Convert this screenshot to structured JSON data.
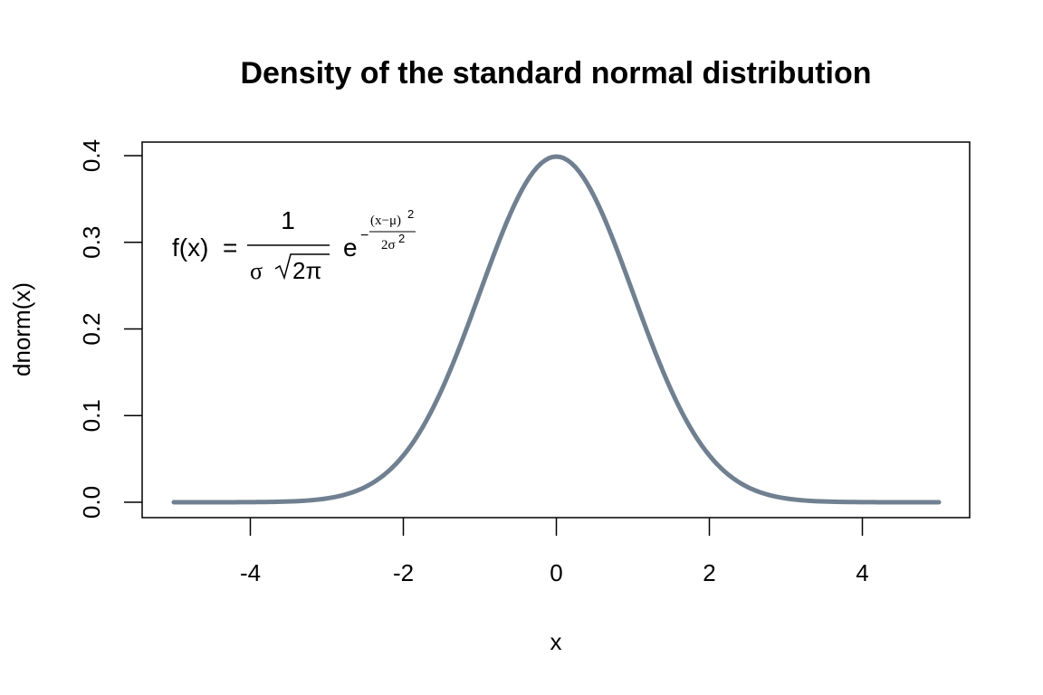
{
  "chart_data": {
    "type": "line",
    "title": "Density of the standard normal distribution",
    "xlabel": "x",
    "ylabel": "dnorm(x)",
    "xlim": [
      -5,
      5
    ],
    "ylim": [
      0,
      0.4
    ],
    "x_ticks": [
      -4,
      -2,
      0,
      2,
      4
    ],
    "x_tick_labels": [
      "-4",
      "-2",
      "0",
      "2",
      "4"
    ],
    "y_ticks": [
      0,
      0.1,
      0.2,
      0.3,
      0.4
    ],
    "y_tick_labels": [
      "0.0",
      "0.1",
      "0.2",
      "0.3",
      "0.4"
    ],
    "grid": false,
    "series": [
      {
        "color": "#708090",
        "function": "dnorm",
        "x": [
          -5,
          -4.5,
          -4,
          -3.5,
          -3,
          -2.5,
          -2,
          -1.5,
          -1,
          -0.5,
          0,
          0.5,
          1,
          1.5,
          2,
          2.5,
          3,
          3.5,
          4,
          4.5,
          5
        ],
        "y": [
          1.5e-06,
          1.6e-05,
          0.000134,
          0.000873,
          0.004432,
          0.017528,
          0.053991,
          0.129518,
          0.241971,
          0.352065,
          0.398942,
          0.352065,
          0.241971,
          0.129518,
          0.053991,
          0.017528,
          0.004432,
          0.000873,
          0.000134,
          1.6e-05,
          1.5e-06
        ]
      }
    ],
    "annotations": [
      {
        "type": "formula",
        "lhs": "f(x)",
        "equals": "=",
        "numerator": "1",
        "sigma": "σ",
        "sqrt_content": "2π",
        "base": "e",
        "minus": "−",
        "exp_numerator": "(x−μ)",
        "exp_numerator_power": "2",
        "exp_denominator": "2σ",
        "exp_denominator_power": "2"
      }
    ]
  }
}
